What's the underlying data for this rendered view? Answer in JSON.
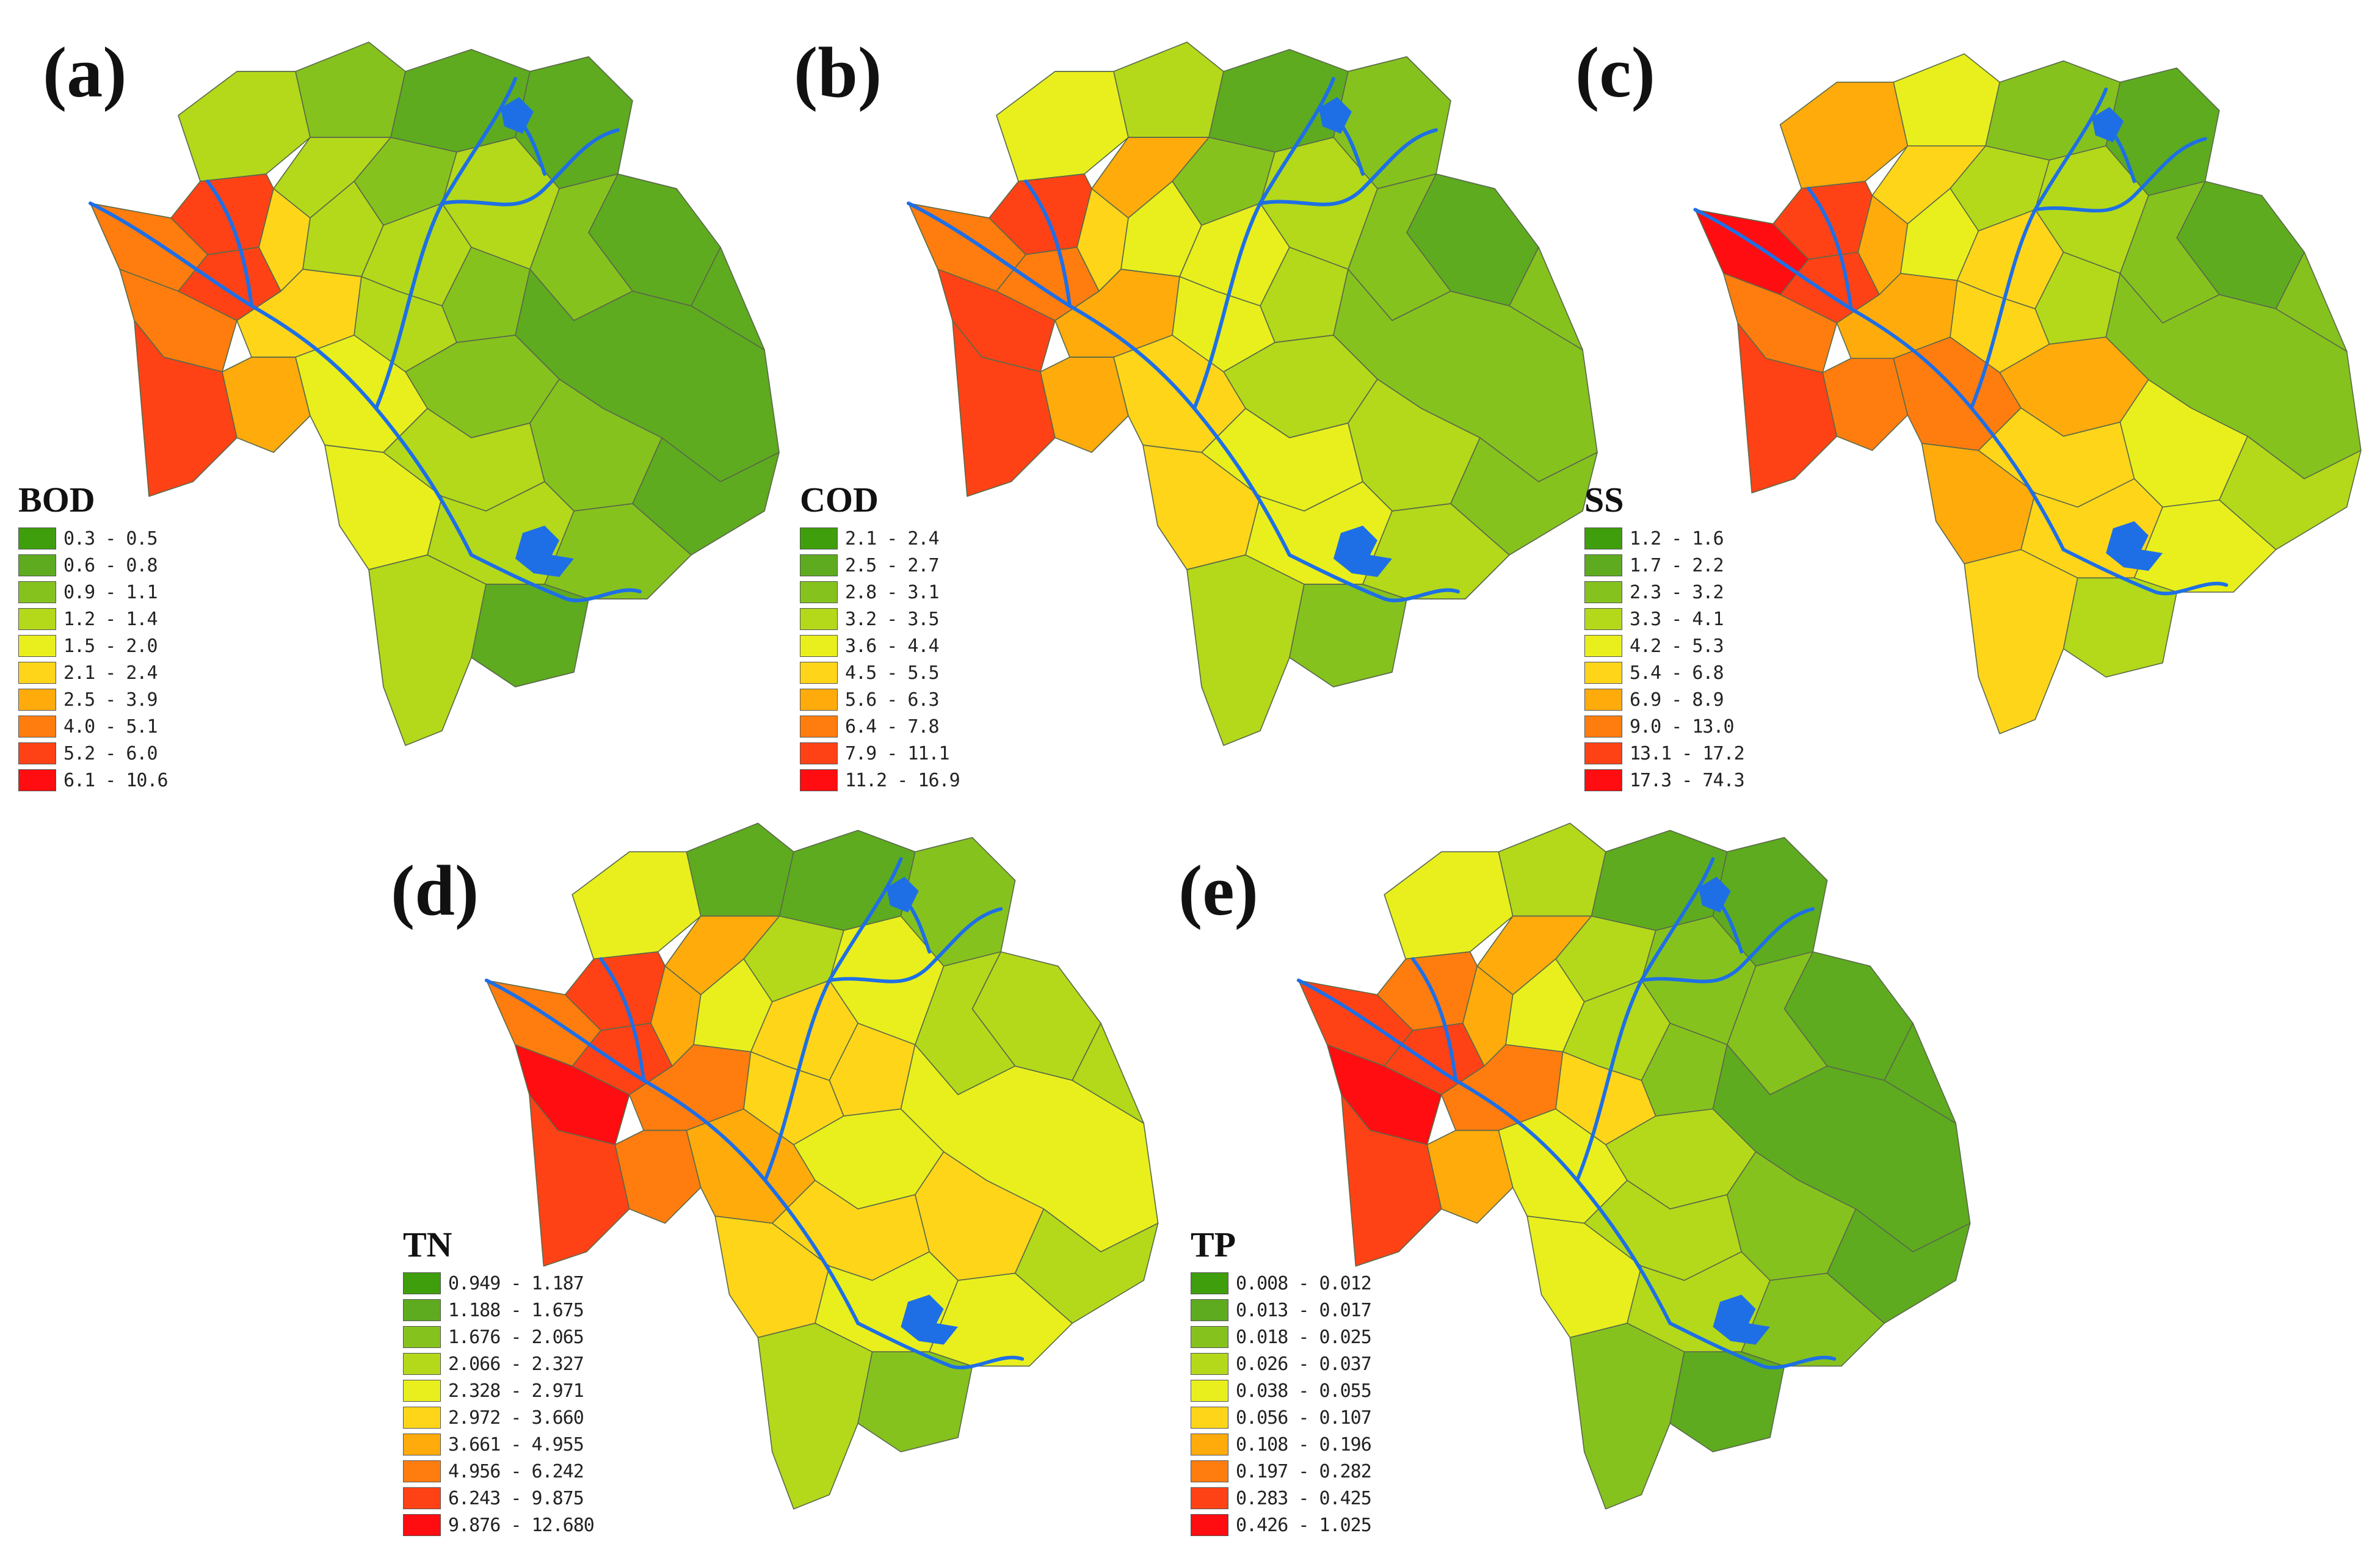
{
  "colors": {
    "class_ramp": [
      "#3f9e0c",
      "#5eab1f",
      "#86c21e",
      "#b3d91a",
      "#e8ef1d",
      "#ffd51a",
      "#ffab0c",
      "#ff7d0f",
      "#ff4216",
      "#ff0d10"
    ],
    "river": "#1e6fe6",
    "boundary": "#5a6a4a"
  },
  "panels": [
    {
      "id": "a",
      "label": "(a)",
      "legend_title": "BOD",
      "classes": [
        "0.3 - 0.5",
        "0.6 - 0.8",
        "0.9 - 1.1",
        "1.2 - 1.4",
        "1.5 - 2.0",
        "2.1 - 2.4",
        "2.5 - 3.9",
        "4.0 - 5.1",
        "5.2 - 6.0",
        "6.1 - 10.6"
      ]
    },
    {
      "id": "b",
      "label": "(b)",
      "legend_title": "COD",
      "classes": [
        "2.1 - 2.4",
        "2.5 - 2.7",
        "2.8 - 3.1",
        "3.2 - 3.5",
        "3.6 - 4.4",
        "4.5 - 5.5",
        "5.6 - 6.3",
        "6.4 - 7.8",
        "7.9 - 11.1",
        "11.2 - 16.9"
      ]
    },
    {
      "id": "c",
      "label": "(c)",
      "legend_title": "SS",
      "classes": [
        "1.2 - 1.6",
        "1.7 - 2.2",
        "2.3 - 3.2",
        "3.3 - 4.1",
        "4.2 - 5.3",
        "5.4 - 6.8",
        "6.9 - 8.9",
        "9.0 - 13.0",
        "13.1 - 17.2",
        "17.3 - 74.3"
      ]
    },
    {
      "id": "d",
      "label": "(d)",
      "legend_title": "TN",
      "classes": [
        "0.949 - 1.187",
        "1.188 - 1.675",
        "1.676 - 2.065",
        "2.066 - 2.327",
        "2.328 - 2.971",
        "2.972 - 3.660",
        "3.661 - 4.955",
        "4.956 - 6.242",
        "6.243 - 9.875",
        "9.876 - 12.680"
      ]
    },
    {
      "id": "e",
      "label": "(e)",
      "legend_title": "TP",
      "classes": [
        "0.008 - 0.012",
        "0.013 - 0.017",
        "0.018 - 0.025",
        "0.026 - 0.037",
        "0.038 - 0.055",
        "0.056 - 0.107",
        "0.108 - 0.196",
        "0.197 - 0.282",
        "0.283 - 0.425",
        "0.426 - 1.025"
      ]
    }
  ]
}
